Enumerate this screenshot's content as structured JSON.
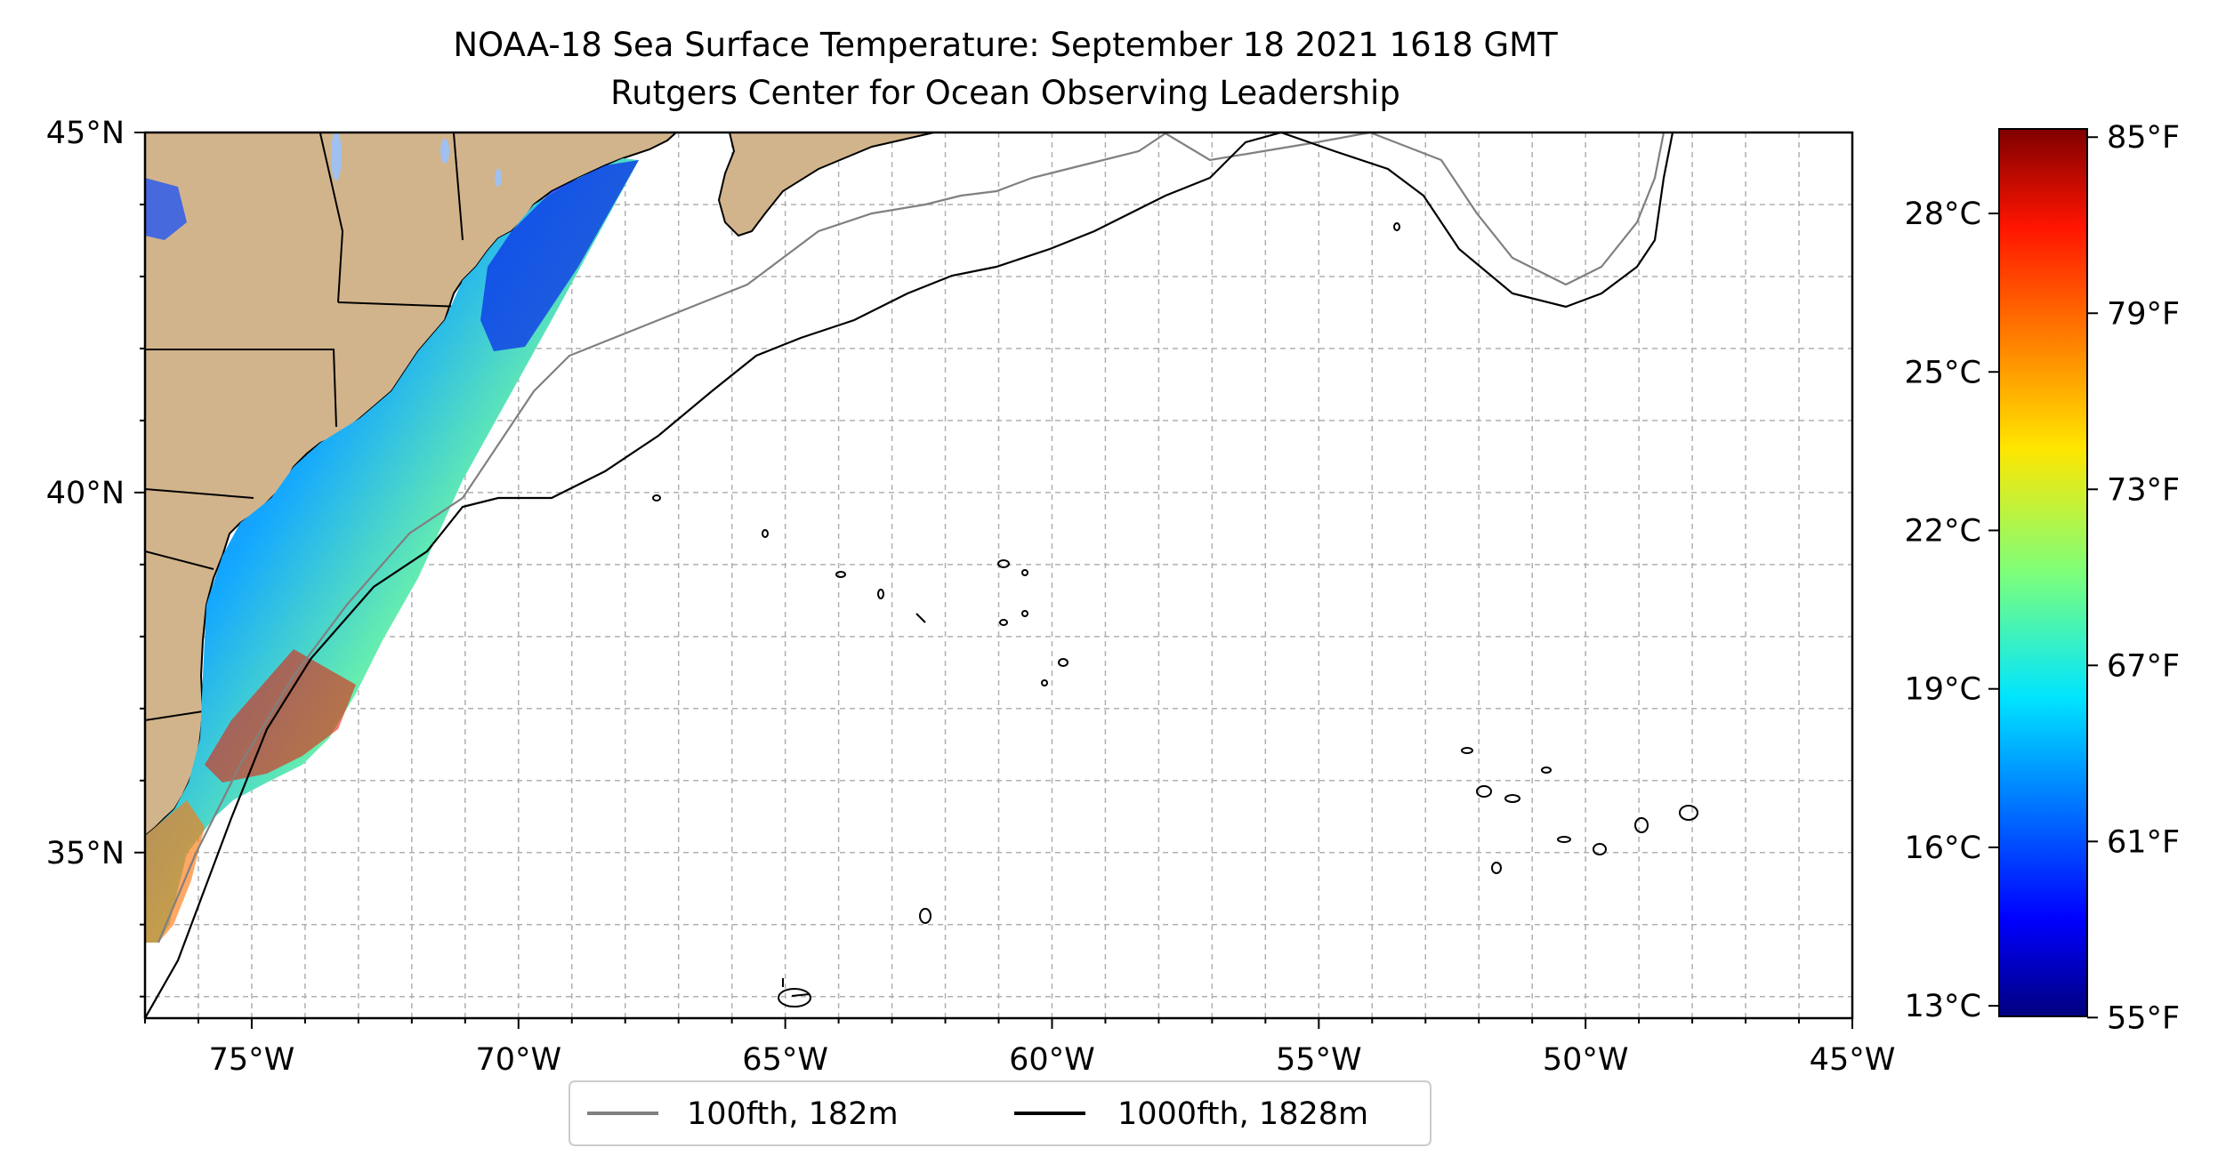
{
  "title": {
    "line1": "NOAA-18 Sea Surface Temperature: September 18 2021 1618 GMT",
    "line2": "Rutgers Center for Ocean Observing Leadership"
  },
  "map": {
    "lon_range": [
      -77,
      -45
    ],
    "lat_range": [
      32.7,
      45
    ],
    "x_ticks": [
      {
        "lon": -75,
        "label": "75°W"
      },
      {
        "lon": -70,
        "label": "70°W"
      },
      {
        "lon": -65,
        "label": "65°W"
      },
      {
        "lon": -60,
        "label": "60°W"
      },
      {
        "lon": -55,
        "label": "55°W"
      },
      {
        "lon": -50,
        "label": "50°W"
      },
      {
        "lon": -45,
        "label": "45°W"
      }
    ],
    "y_ticks": [
      {
        "lat": 45,
        "label": "45°N"
      },
      {
        "lat": 40,
        "label": "40°N"
      },
      {
        "lat": 35,
        "label": "35°N"
      }
    ],
    "gridlines": true,
    "land_color": "#d2b48c",
    "ocean_color": "#ffffff"
  },
  "legend": {
    "items": [
      {
        "label": "100fth, 182m",
        "color": "#808080"
      },
      {
        "label": "1000fth, 1828m",
        "color": "#000000"
      }
    ],
    "placement": "below map"
  },
  "colorbar": {
    "colormap": "jet",
    "range_c": [
      12.8,
      29.6
    ],
    "celsius_ticks": [
      {
        "value": 13,
        "label": "13°C"
      },
      {
        "value": 16,
        "label": "16°C"
      },
      {
        "value": 19,
        "label": "19°C"
      },
      {
        "value": 22,
        "label": "22°C"
      },
      {
        "value": 25,
        "label": "25°C"
      },
      {
        "value": 28,
        "label": "28°C"
      }
    ],
    "fahrenheit_ticks": [
      {
        "value": 55,
        "label": "55°F"
      },
      {
        "value": 61,
        "label": "61°F"
      },
      {
        "value": 67,
        "label": "67°F"
      },
      {
        "value": 73,
        "label": "73°F"
      },
      {
        "value": 79,
        "label": "79°F"
      },
      {
        "value": 85,
        "label": "85°F"
      }
    ]
  }
}
